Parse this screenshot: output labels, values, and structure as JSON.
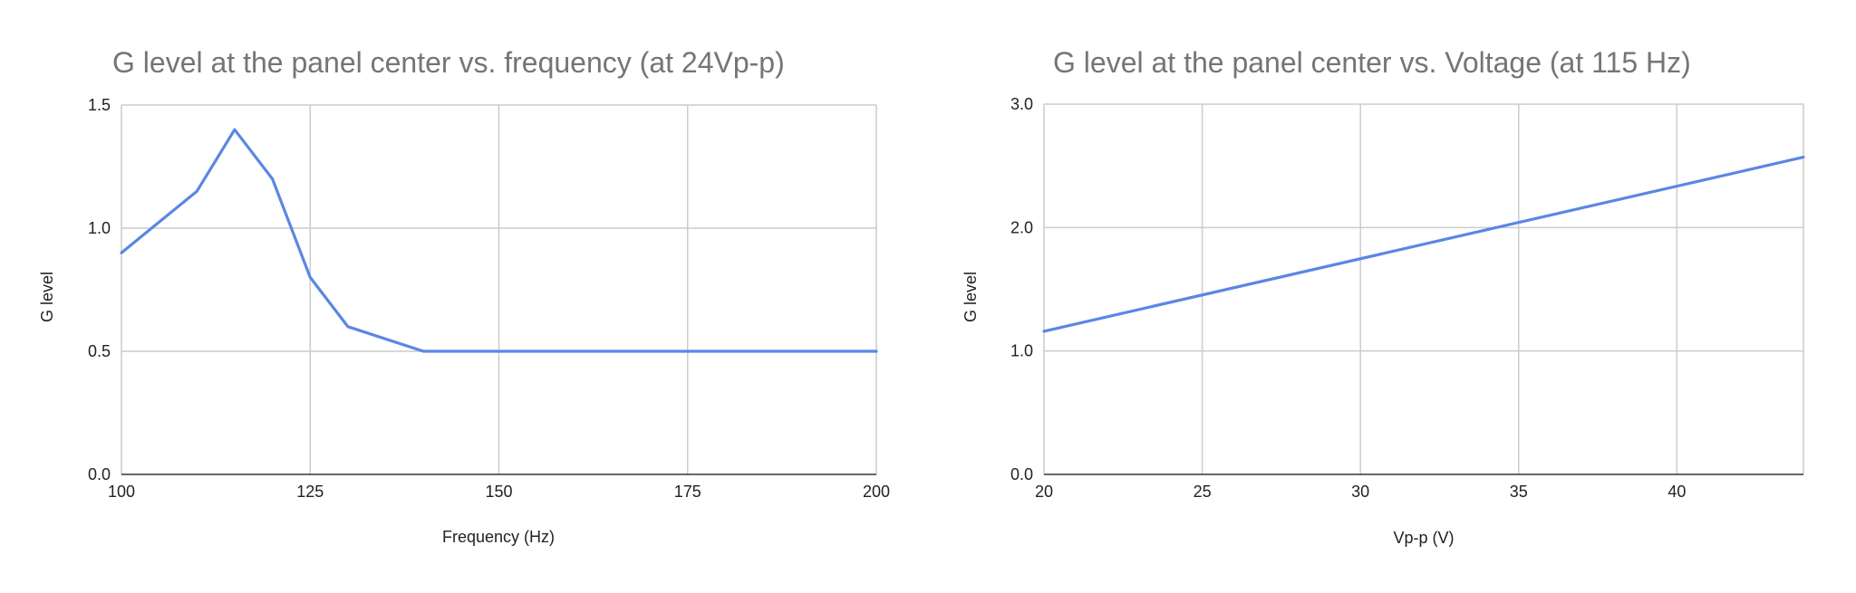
{
  "chart_data": [
    {
      "type": "line",
      "title": "G level at the panel center vs. frequency (at 24Vp-p)",
      "xlabel": "Frequency (Hz)",
      "ylabel": "G level",
      "xlim": [
        100,
        200
      ],
      "ylim": [
        0,
        1.5
      ],
      "xticks": [
        100,
        125,
        150,
        175,
        200
      ],
      "yticks": [
        0,
        0.5,
        1,
        1.5
      ],
      "xtick_labels": [
        "100",
        "125",
        "150",
        "175",
        "200"
      ],
      "ytick_labels": [
        "0.0",
        "0.5",
        "1.0",
        "1.5"
      ],
      "grid": true,
      "legend": "none",
      "series": [
        {
          "name": "G level",
          "color": "#5b86e5",
          "x": [
            100,
            110,
            115,
            120,
            125,
            130,
            140,
            150,
            160,
            170,
            180,
            190,
            200
          ],
          "y": [
            0.9,
            1.15,
            1.4,
            1.2,
            0.8,
            0.6,
            0.5,
            0.5,
            0.5,
            0.5,
            0.5,
            0.5,
            0.5
          ]
        }
      ]
    },
    {
      "type": "line",
      "title": "G level at the panel center vs. Voltage (at 115 Hz)",
      "xlabel": "Vp-p (V)",
      "ylabel": "G level",
      "xlim": [
        20,
        44
      ],
      "ylim": [
        0,
        3
      ],
      "xticks": [
        20,
        25,
        30,
        35,
        40
      ],
      "yticks": [
        0,
        1,
        2,
        3
      ],
      "xtick_labels": [
        "20",
        "25",
        "30",
        "35",
        "40"
      ],
      "ytick_labels": [
        "0.0",
        "1.0",
        "2.0",
        "3.0"
      ],
      "grid": true,
      "legend": "none",
      "series": [
        {
          "name": "G level",
          "color": "#5b86e5",
          "x": [
            20,
            44
          ],
          "y": [
            1.16,
            2.57
          ]
        }
      ]
    }
  ]
}
